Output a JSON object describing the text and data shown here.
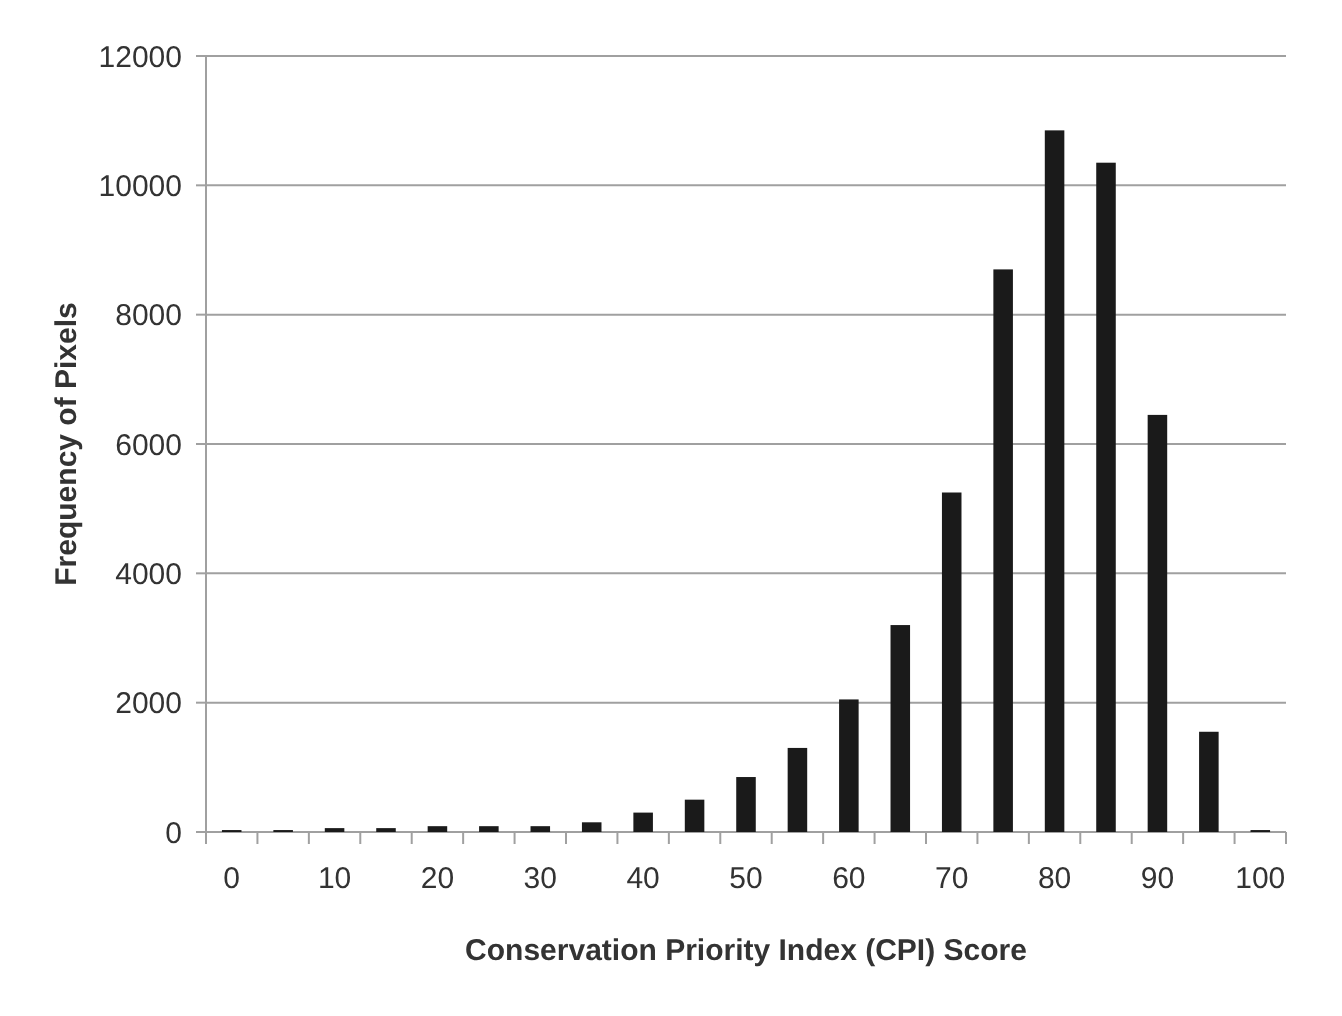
{
  "chart_data": {
    "type": "bar",
    "xlabel": "Conservation Priority Index (CPI) Score",
    "ylabel": "Frequency of  Pixels",
    "categories": [
      "0",
      null,
      "10",
      null,
      "20",
      null,
      "30",
      null,
      "40",
      null,
      "50",
      null,
      "60",
      null,
      "70",
      null,
      "80",
      null,
      "90",
      null,
      "100"
    ],
    "values": [
      30,
      30,
      60,
      60,
      90,
      90,
      90,
      150,
      300,
      500,
      850,
      1300,
      2050,
      3200,
      5250,
      8700,
      10850,
      10350,
      6450,
      1550,
      30
    ],
    "color": "#1a1a1a",
    "ylim": [
      0,
      12000
    ],
    "yticks": [
      0,
      2000,
      4000,
      6000,
      8000,
      10000,
      12000
    ],
    "grid": "y"
  }
}
